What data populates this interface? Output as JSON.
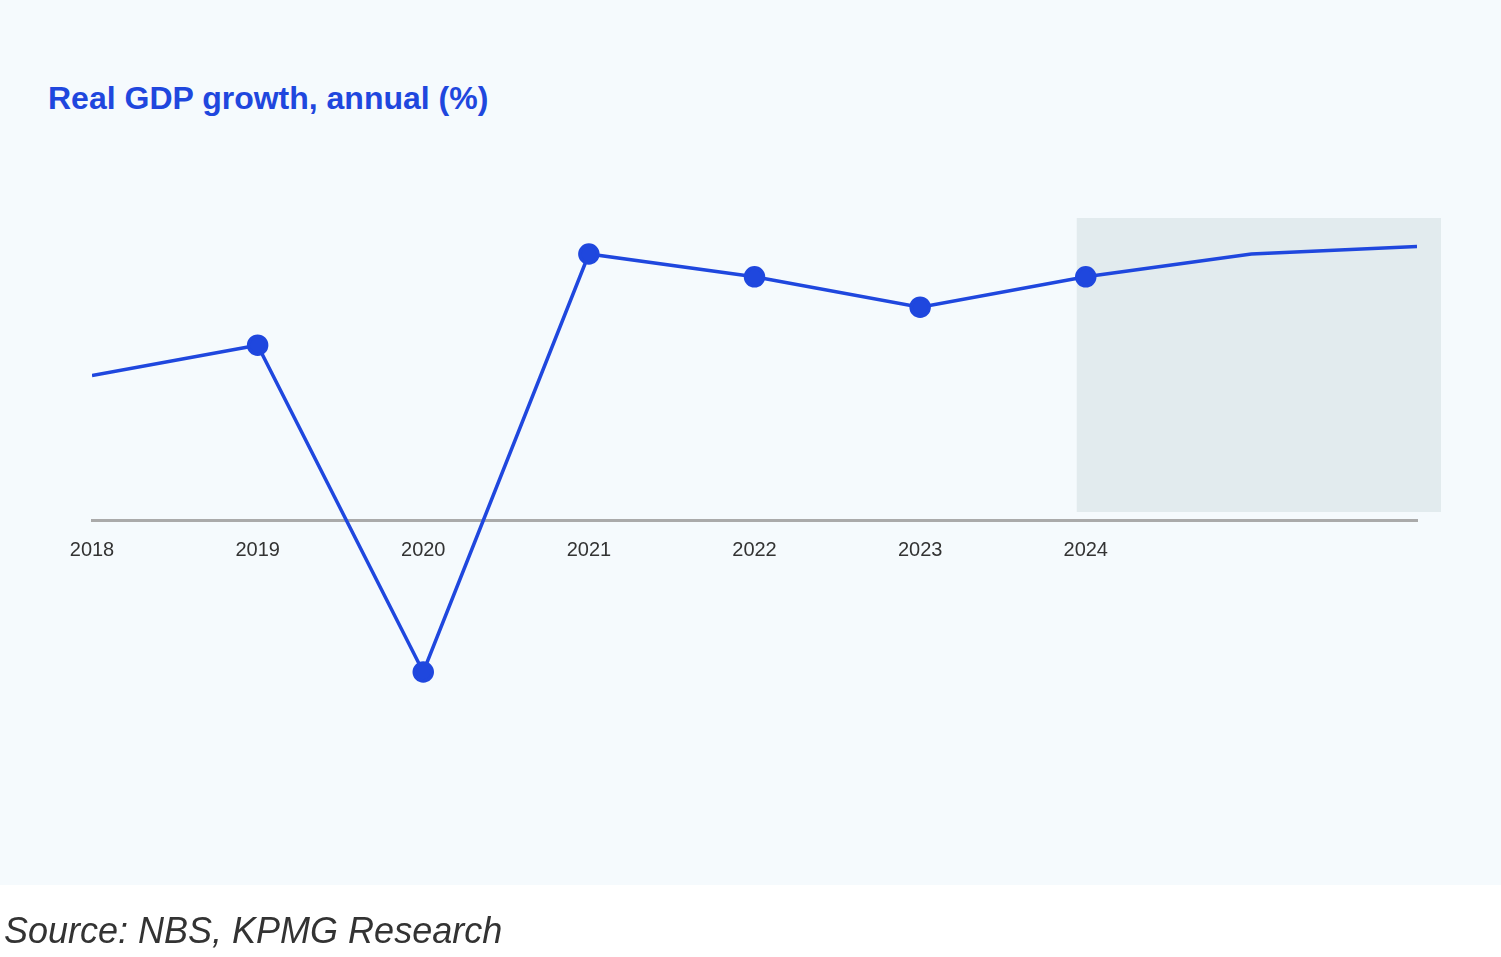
{
  "chart_data": {
    "type": "line",
    "title": "Real GDP growth, annual (%)",
    "source": "Source: NBS, KPMG Research",
    "categories": [
      "2018",
      "2019",
      "2020",
      "2021",
      "2022",
      "2023",
      "2024",
      null,
      null
    ],
    "values": [
      1.9,
      2.3,
      -2.0,
      3.5,
      3.2,
      2.8,
      3.2,
      3.5,
      3.6
    ],
    "color": "#1f47de",
    "marker": "circle",
    "ylim": [
      -3,
      4.5
    ],
    "grid": false,
    "tick_labels": "x"
  }
}
